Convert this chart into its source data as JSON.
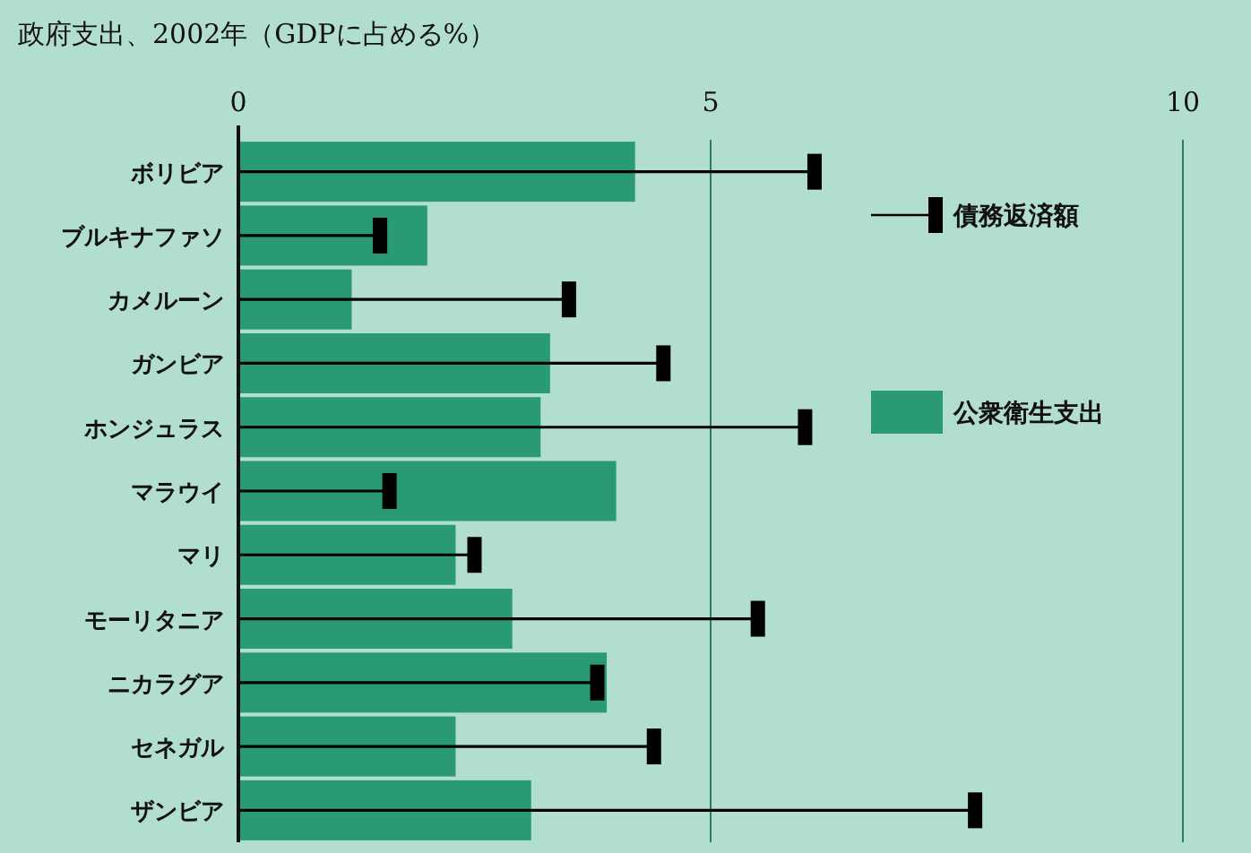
{
  "chart_data": {
    "type": "bar",
    "orientation": "horizontal",
    "title": "政府支出、2002年（GDPに占める%）",
    "categories": [
      "ボリビア",
      "ブルキナファソ",
      "カメルーン",
      "ガンビア",
      "ホンジュラス",
      "マラウイ",
      "マリ",
      "モーリタニア",
      "ニカラグア",
      "セネガル",
      "ザンビア"
    ],
    "series": [
      {
        "name": "公衆衛生支出",
        "type": "bar",
        "color": "#2a9a74",
        "values": [
          4.2,
          2.0,
          1.2,
          3.3,
          3.2,
          4.0,
          2.3,
          2.9,
          3.9,
          2.3,
          3.1
        ]
      },
      {
        "name": "債務返済額",
        "type": "lollipop",
        "color": "#000000",
        "values": [
          6.1,
          1.5,
          3.5,
          4.5,
          6.0,
          1.6,
          2.5,
          5.5,
          3.8,
          4.4,
          7.8
        ]
      }
    ],
    "xlim": [
      0,
      10
    ],
    "xticks": [
      0,
      5,
      10
    ],
    "ref_lines": [
      {
        "axis": "x",
        "value": 5,
        "color": "#2f7a63"
      },
      {
        "axis": "x",
        "value": 10,
        "color": "#2f7a63"
      }
    ],
    "legend": "right"
  }
}
